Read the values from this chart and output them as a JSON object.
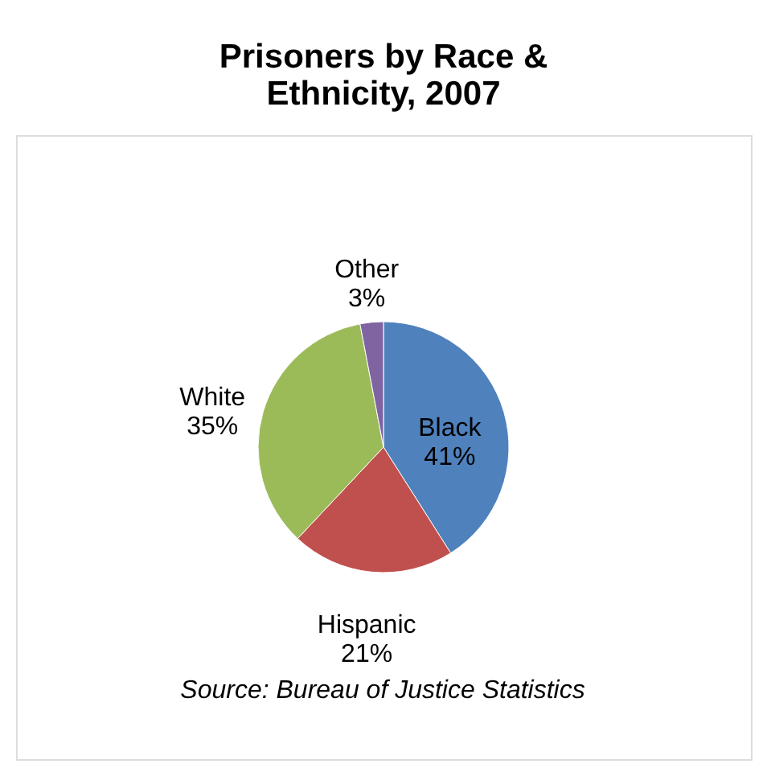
{
  "chart_data": {
    "type": "pie",
    "title": [
      "Prisoners by Race &",
      "Ethnicity, 2007"
    ],
    "categories": [
      "Black",
      "Hispanic",
      "White",
      "Other"
    ],
    "values": [
      41,
      21,
      35,
      3
    ],
    "value_labels": [
      "41%",
      "21%",
      "35%",
      "3%"
    ],
    "colors": [
      "#4f81bd",
      "#c0504d",
      "#9bbb59",
      "#8064a2"
    ],
    "legend": false,
    "annotations": [
      "Source: Bureau of Justice Statistics"
    ]
  }
}
